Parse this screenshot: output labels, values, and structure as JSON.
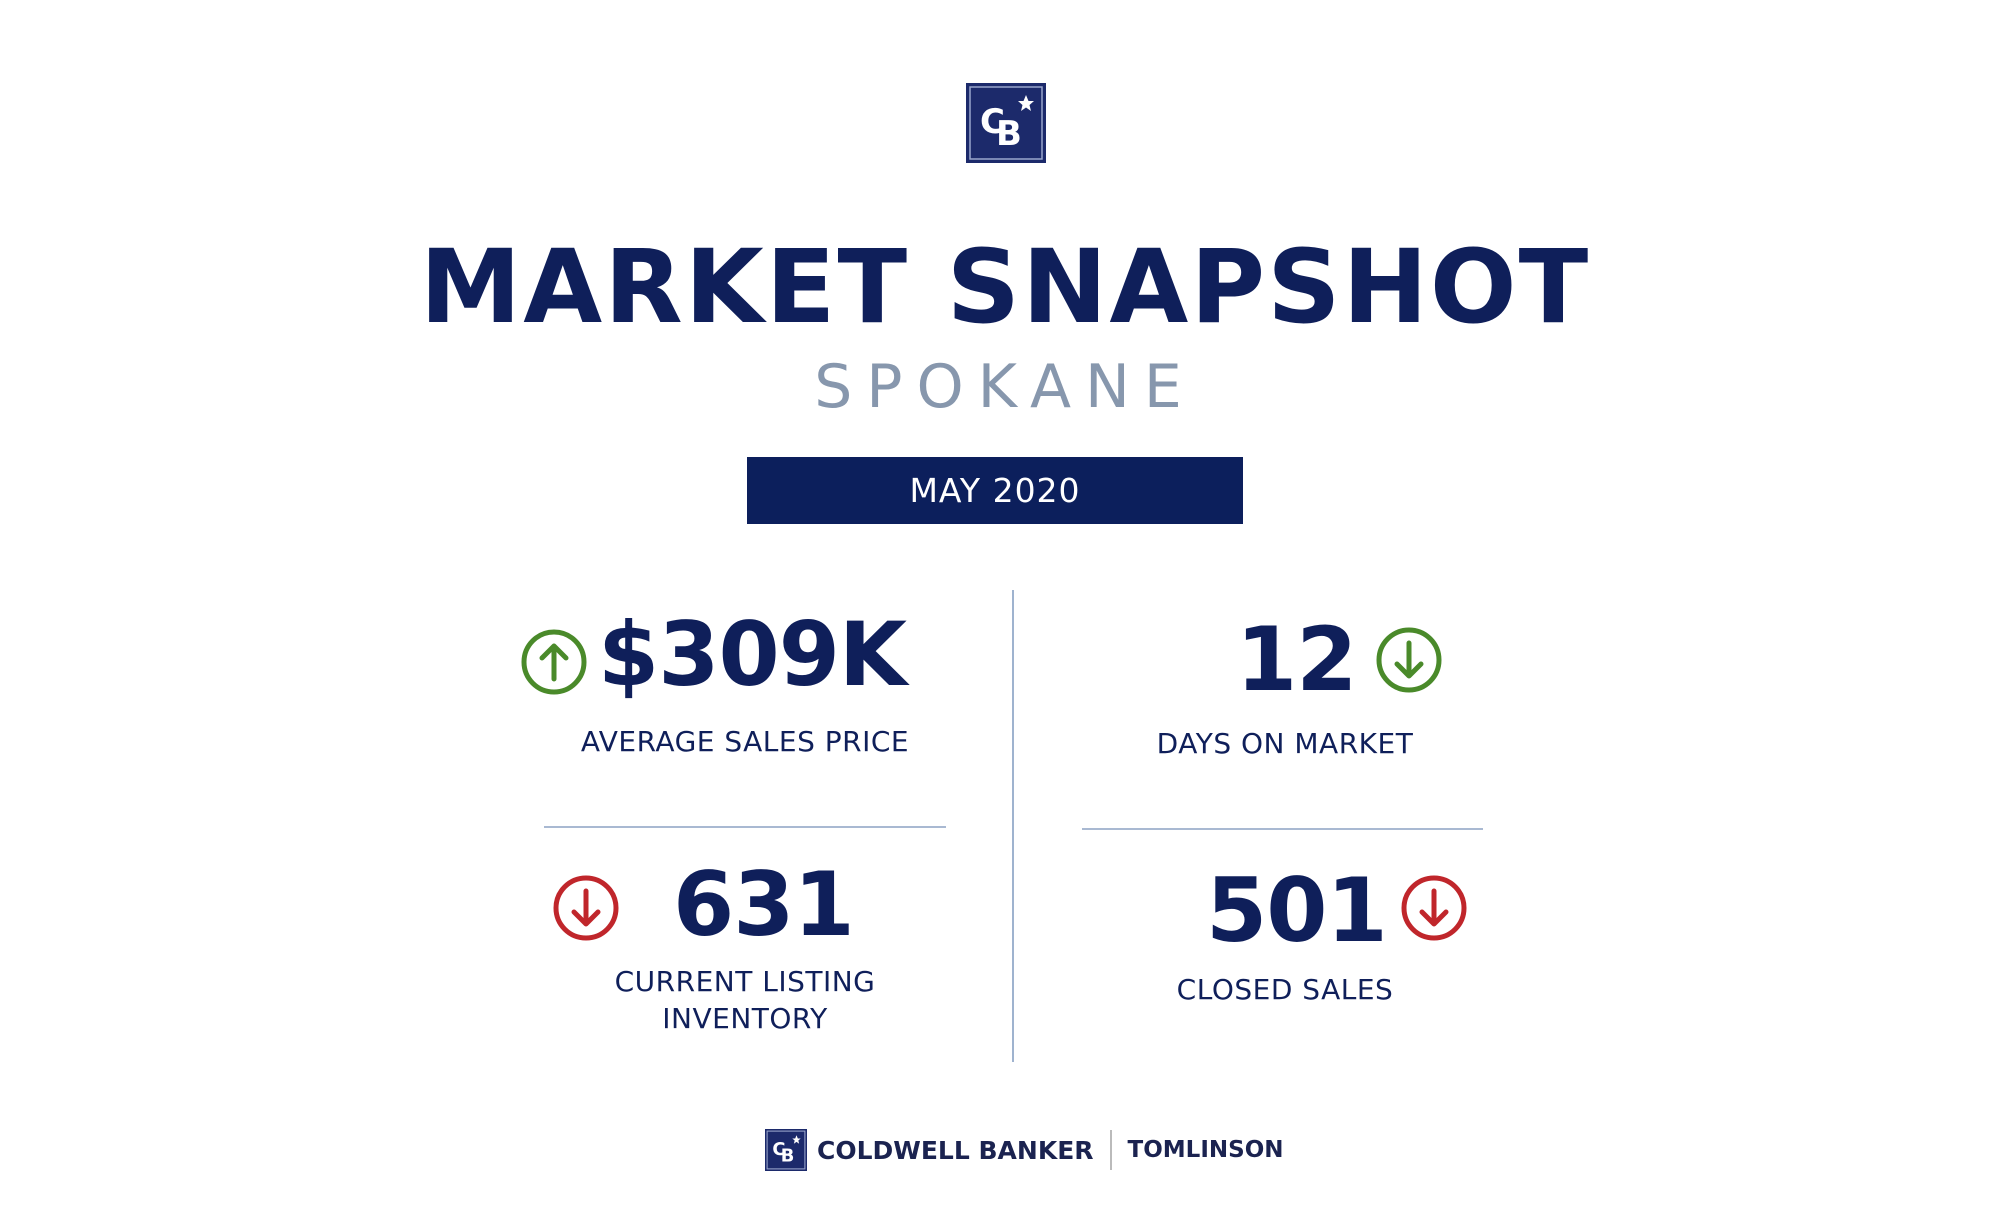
{
  "header": {
    "logo": "CB",
    "title": "MARKET SNAPSHOT",
    "city": "SPOKANE",
    "period": "MAY 2020"
  },
  "colors": {
    "navy": "#0c1f5c",
    "up_good": "#4a8a2a",
    "down_good": "#4a8a2a",
    "down_bad": "#c0262b",
    "subtitle": "#8797ad"
  },
  "stats": [
    {
      "value": "$309K",
      "label": "AVERAGE SALES PRICE",
      "trend": "up",
      "trend_icon": "arrow-up-circle-icon",
      "trend_color": "#4a8a2a"
    },
    {
      "value": "12",
      "label": "DAYS ON MARKET",
      "trend": "down",
      "trend_icon": "arrow-down-circle-icon",
      "trend_color": "#4a8a2a"
    },
    {
      "value": "631",
      "label_line1": "CURRENT LISTING",
      "label_line2": "INVENTORY",
      "trend": "down",
      "trend_icon": "arrow-down-circle-icon",
      "trend_color": "#c0262b"
    },
    {
      "value": "501",
      "label": "CLOSED SALES",
      "trend": "down",
      "trend_icon": "arrow-down-circle-icon",
      "trend_color": "#c0262b"
    }
  ],
  "footer": {
    "brand": "COLDWELL BANKER",
    "office": "TOMLINSON",
    "logo": "CB"
  }
}
